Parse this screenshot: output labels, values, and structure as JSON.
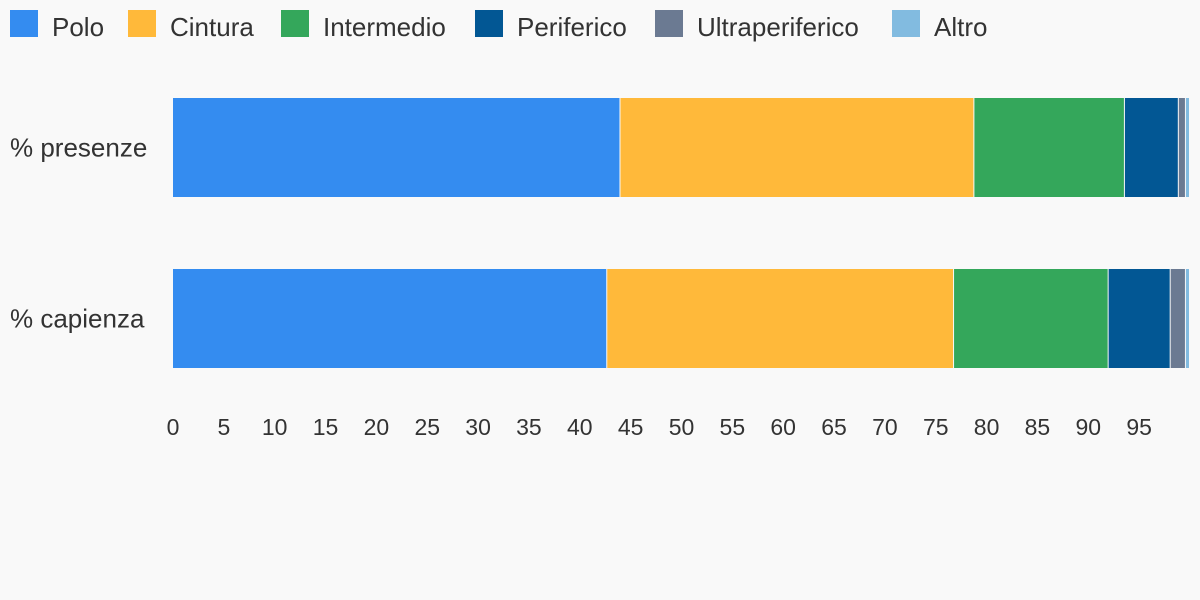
{
  "chart_data": {
    "type": "bar",
    "orientation": "horizontal",
    "stacked": true,
    "categories": [
      "% presenze",
      "% capienza"
    ],
    "series": [
      {
        "name": "Polo",
        "color": "#348cf0",
        "values": [
          44.0,
          42.7
        ]
      },
      {
        "name": "Cintura",
        "color": "#ffb93a",
        "values": [
          34.8,
          34.1
        ]
      },
      {
        "name": "Intermedio",
        "color": "#34a75b",
        "values": [
          14.8,
          15.2
        ]
      },
      {
        "name": "Periferico",
        "color": "#025794",
        "values": [
          5.3,
          6.1
        ]
      },
      {
        "name": "Ultraperiferico",
        "color": "#6b7a92",
        "values": [
          0.7,
          1.5
        ]
      },
      {
        "name": "Altro",
        "color": "#82bbe0",
        "values": [
          0.4,
          0.4
        ]
      }
    ],
    "xlim": [
      0,
      100
    ],
    "x_ticks": [
      0,
      5,
      10,
      15,
      20,
      25,
      30,
      35,
      40,
      45,
      50,
      55,
      60,
      65,
      70,
      75,
      80,
      85,
      90,
      95
    ],
    "legend_position": "top-left",
    "grid": false
  }
}
